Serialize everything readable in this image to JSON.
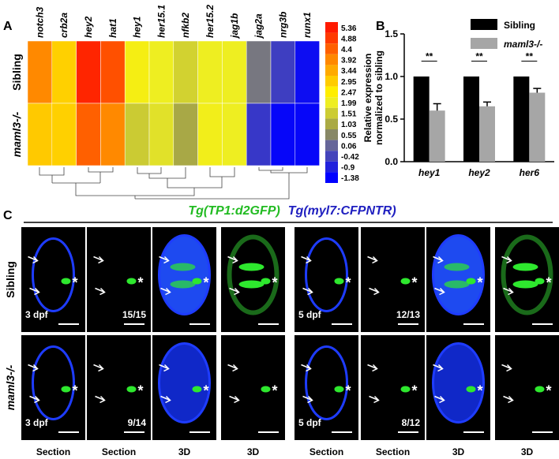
{
  "panel_labels": [
    "A",
    "B",
    "C"
  ],
  "heatmap": {
    "genes": [
      "notch3",
      "crb2a",
      "hey2",
      "hat1",
      "hey1",
      "her15.1",
      "nfkb2",
      "her15.2",
      "jag1b",
      "jag2a",
      "nrg3b",
      "runx1"
    ],
    "rows": [
      "Sibling",
      "maml3-/-"
    ],
    "values": [
      [
        3.9,
        2.9,
        5.2,
        4.6,
        2.2,
        2.0,
        1.6,
        2.0,
        2.0,
        0.3,
        -0.5,
        -1.2
      ],
      [
        3.0,
        2.9,
        4.4,
        3.9,
        1.5,
        1.8,
        1.0,
        2.1,
        2.0,
        -0.6,
        -1.3,
        -1.3
      ]
    ],
    "colorbar": [
      {
        "value": 5.36,
        "color": "#ff1a00"
      },
      {
        "value": 4.88,
        "color": "#ff3a00"
      },
      {
        "value": 4.4,
        "color": "#ff6000"
      },
      {
        "value": 3.92,
        "color": "#ff8800"
      },
      {
        "value": 3.44,
        "color": "#ffaa00"
      },
      {
        "value": 2.95,
        "color": "#ffcc00"
      },
      {
        "value": 2.47,
        "color": "#ffee00"
      },
      {
        "value": 1.99,
        "color": "#eeee22"
      },
      {
        "value": 1.51,
        "color": "#cccc33"
      },
      {
        "value": 1.03,
        "color": "#aaaa44"
      },
      {
        "value": 0.55,
        "color": "#888866"
      },
      {
        "value": 0.06,
        "color": "#666699"
      },
      {
        "value": -0.42,
        "color": "#4444bb"
      },
      {
        "value": -0.9,
        "color": "#2222dd"
      },
      {
        "value": -1.38,
        "color": "#0000ff"
      }
    ]
  },
  "chart_data": {
    "type": "bar",
    "ylabel": [
      "Relative expression",
      "normalized to sibling"
    ],
    "categories": [
      "hey1",
      "hey2",
      "her6"
    ],
    "series": [
      {
        "name": "Sibling",
        "color": "#000000",
        "values": [
          1.0,
          1.0,
          1.0
        ]
      },
      {
        "name": "maml3-/-",
        "color": "#a6a6a6",
        "values": [
          0.6,
          0.65,
          0.81
        ],
        "errors": [
          0.08,
          0.05,
          0.05
        ]
      }
    ],
    "annotations": [
      "**",
      "**",
      "**"
    ],
    "ylim": [
      0,
      1.5
    ],
    "yticks": [
      {
        "value": 0,
        "label": "0.0"
      },
      0.5,
      {
        "value": 1,
        "label": "1.0"
      },
      1.5
    ]
  },
  "images": {
    "title": [
      "Tg(TP1:d2GFP)",
      "Tg(myl7:CFPNTR)"
    ],
    "rows": [
      "Sibling",
      "maml3-/-"
    ],
    "columns": [
      "Section",
      "Section",
      "3D",
      "3D",
      "Section",
      "Section",
      "3D",
      "3D"
    ],
    "stages": [
      [
        "3 dpf",
        "5 dpf"
      ],
      [
        "3 dpf",
        "5 dpf"
      ]
    ],
    "counts": [
      [
        "15/15",
        "12/13"
      ],
      [
        "9/14",
        "8/12"
      ]
    ]
  }
}
